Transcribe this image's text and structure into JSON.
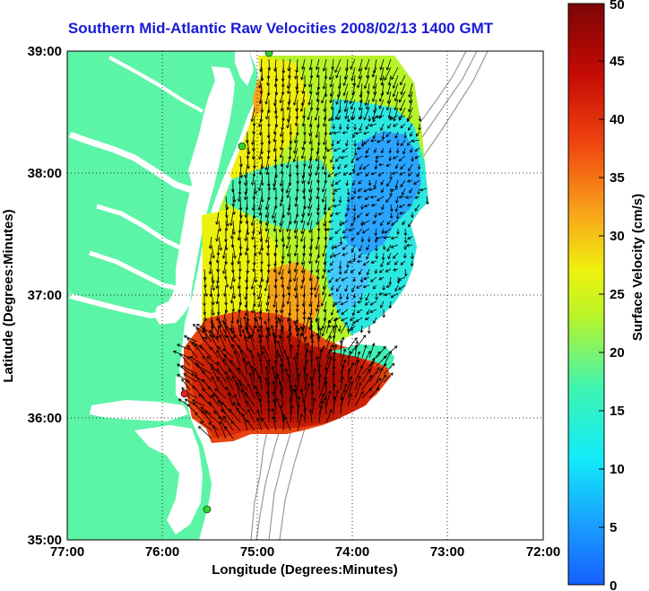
{
  "title": "Southern Mid-Atlantic Raw Velocities 2008/02/13 1400 GMT",
  "map": {
    "xlabel": "Longitude (Degrees:Minutes)",
    "ylabel": "Latitude (Degrees:Minutes)",
    "x_ticks": [
      "77:00",
      "76:00",
      "75:00",
      "74:00",
      "73:00",
      "72:00"
    ],
    "y_ticks": [
      "39:00",
      "38:00",
      "37:00",
      "36:00",
      "35:00"
    ],
    "lon_range": [
      -77,
      -72
    ],
    "lat_range": [
      35,
      39
    ],
    "grid": true
  },
  "colorbar": {
    "label": "Surface Velocity (cm/s)",
    "ticks": [
      "50",
      "45",
      "40",
      "35",
      "30",
      "25",
      "20",
      "15",
      "10",
      "5",
      "0"
    ],
    "range": [
      0,
      50
    ]
  },
  "colors": {
    "land": "#5cf4a6",
    "title": "#1a1ad8",
    "station": "#2bd62b",
    "station_alert": "#e02020",
    "arrows": "#000000",
    "bathymetry": "#9a9a9a"
  }
}
